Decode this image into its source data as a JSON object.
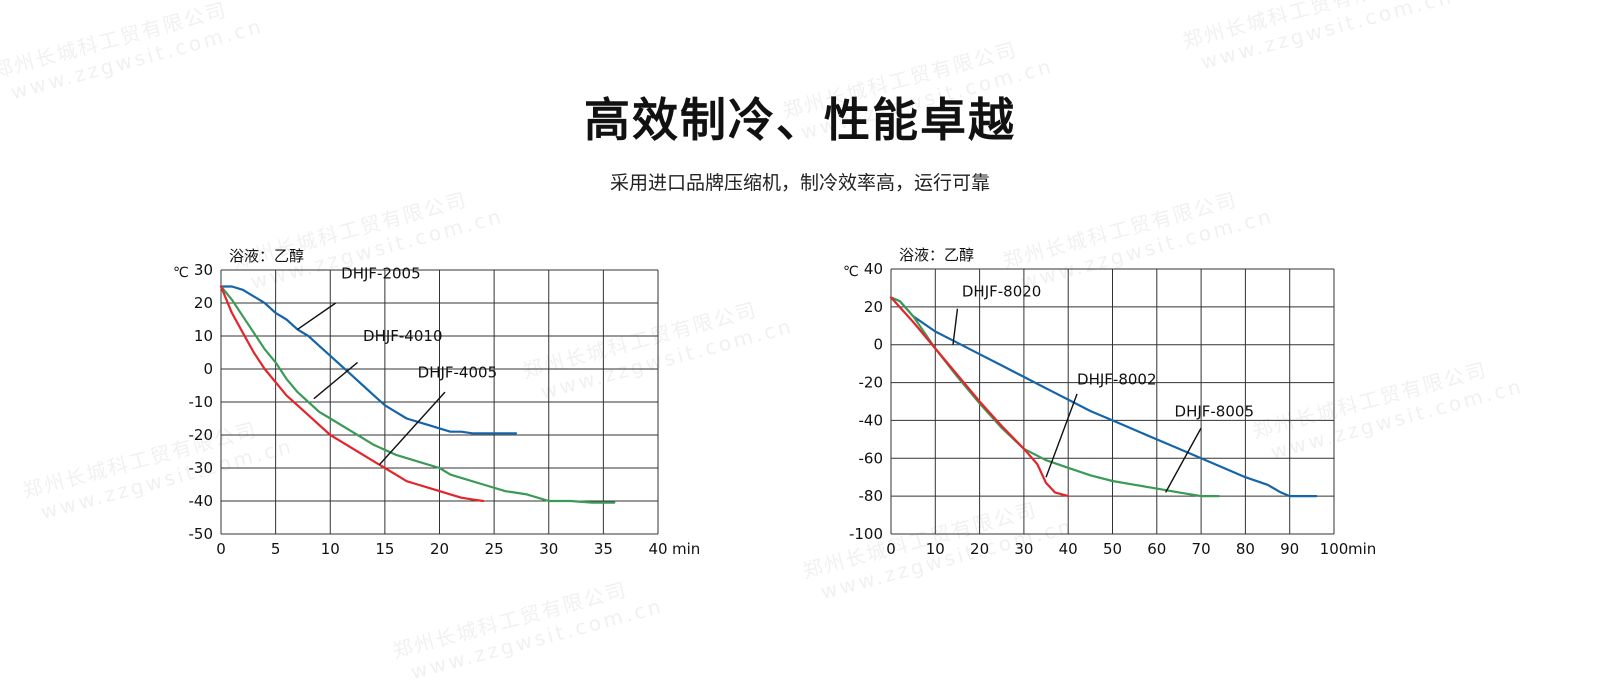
{
  "title": "高效制冷、性能卓越",
  "subtitle": "采用进口品牌压缩机，制冷效率高，运行可靠",
  "watermark": {
    "company": "郑州长城科工贸有限公司",
    "url": "www.zzgwsit.com.cn"
  },
  "chart_data": [
    {
      "type": "line",
      "title": "",
      "annotation": "浴液：乙醇",
      "xlabel": "min",
      "ylabel": "℃",
      "xlim": [
        0,
        40
      ],
      "ylim": [
        -50,
        30
      ],
      "xticks": [
        0,
        5,
        10,
        15,
        20,
        25,
        30,
        35,
        40
      ],
      "yticks": [
        30,
        20,
        10,
        0,
        -10,
        -20,
        -30,
        -40,
        -50
      ],
      "grid": true,
      "series": [
        {
          "name": "DHJF-2005",
          "color": "#1565a8",
          "x": [
            0,
            1,
            2,
            3,
            4,
            5,
            6,
            7,
            8,
            9,
            10,
            11,
            12,
            13,
            14,
            15,
            16,
            17,
            18,
            19,
            20,
            21,
            22,
            23,
            24,
            25,
            26,
            27
          ],
          "y": [
            25,
            25,
            24,
            22,
            20,
            17,
            15,
            12,
            10,
            7,
            4,
            1,
            -2,
            -5,
            -8,
            -11,
            -13,
            -15,
            -16,
            -17,
            -18,
            -19,
            -19,
            -19.5,
            -19.5,
            -19.5,
            -19.5,
            -19.5
          ]
        },
        {
          "name": "DHJF-4010",
          "color": "#3a9a56",
          "x": [
            0,
            1,
            2,
            3,
            4,
            5,
            6,
            7,
            8,
            9,
            10,
            12,
            14,
            16,
            18,
            20,
            21,
            22,
            24,
            26,
            28,
            30,
            32,
            34,
            35,
            36
          ],
          "y": [
            25,
            21,
            16,
            11,
            6,
            2,
            -3,
            -7,
            -10,
            -13,
            -15,
            -19,
            -23,
            -26,
            -28,
            -30,
            -32,
            -33,
            -35,
            -37,
            -38,
            -40,
            -40,
            -40.5,
            -40.5,
            -40.5
          ]
        },
        {
          "name": "DHJF-4005",
          "color": "#e3252a",
          "x": [
            0,
            1,
            2,
            3,
            4,
            5,
            6,
            7,
            8,
            9,
            10,
            11,
            12,
            13,
            14,
            15,
            16,
            17,
            18,
            19,
            20,
            21,
            22,
            23,
            24
          ],
          "y": [
            25,
            17,
            11,
            5,
            0,
            -4,
            -8,
            -11,
            -14,
            -17,
            -20,
            -22,
            -24,
            -26,
            -28,
            -30,
            -32,
            -34,
            -35,
            -36,
            -37,
            -38,
            -39,
            -39.5,
            -40
          ]
        }
      ],
      "labels": [
        {
          "text": "DHJF-2005",
          "x": 11,
          "y": 27.5,
          "x0": 10.5,
          "y0": 20,
          "x1": 7,
          "y1": 12
        },
        {
          "text": "DHJF-4010",
          "x": 13,
          "y": 8.5,
          "x0": 12.5,
          "y0": 2,
          "x1": 8.5,
          "y1": -9
        },
        {
          "text": "DHJF-4005",
          "x": 18,
          "y": -2.5,
          "x0": 20.5,
          "y0": -7,
          "x1": 14.5,
          "y1": -29
        }
      ]
    },
    {
      "type": "line",
      "title": "",
      "annotation": "浴液：乙醇",
      "xlabel": "min",
      "ylabel": "℃",
      "xlim": [
        0,
        100
      ],
      "ylim": [
        -100,
        40
      ],
      "xticks": [
        0,
        10,
        20,
        30,
        40,
        50,
        60,
        70,
        80,
        90,
        100
      ],
      "yticks": [
        40,
        20,
        0,
        -20,
        -40,
        -60,
        -80,
        -100
      ],
      "grid": true,
      "series": [
        {
          "name": "DHJF-8020",
          "color": "#1565a8",
          "x": [
            0,
            2,
            5,
            10,
            15,
            20,
            25,
            30,
            35,
            40,
            45,
            50,
            55,
            60,
            65,
            70,
            75,
            80,
            85,
            88,
            90,
            93,
            96
          ],
          "y": [
            25,
            23,
            15,
            7,
            1,
            -5,
            -11,
            -17,
            -23,
            -29,
            -35,
            -40,
            -45,
            -50,
            -55,
            -60,
            -65,
            -70,
            -74,
            -78,
            -80,
            -80,
            -80
          ]
        },
        {
          "name": "DHJF-8002",
          "color": "#3a9a56",
          "x": [
            0,
            2,
            5,
            10,
            15,
            20,
            25,
            30,
            35,
            40,
            45,
            50,
            55,
            60,
            65,
            70,
            74
          ],
          "y": [
            25,
            23,
            15,
            -2,
            -17,
            -31,
            -44,
            -55,
            -61,
            -65,
            -69,
            -72,
            -74,
            -76,
            -78,
            -80,
            -80
          ]
        },
        {
          "name": "DHJF-8005",
          "color": "#e3252a",
          "x": [
            0,
            5,
            10,
            15,
            20,
            25,
            30,
            33,
            35,
            37,
            40
          ],
          "y": [
            25,
            12,
            -2,
            -16,
            -30,
            -43,
            -55,
            -63,
            -73,
            -78,
            -80
          ]
        }
      ],
      "labels": [
        {
          "text": "DHJF-8020",
          "x": 16,
          "y": 25.5,
          "x0": 15,
          "y0": 19,
          "x1": 14,
          "y1": 0
        },
        {
          "text": "DHJF-8002",
          "x": 42,
          "y": -21,
          "x0": 42,
          "y0": -26,
          "x1": 35,
          "y1": -70
        },
        {
          "text": "DHJF-8005",
          "x": 64,
          "y": -38,
          "x0": 70,
          "y0": -44,
          "x1": 62,
          "y1": -78
        }
      ]
    }
  ]
}
